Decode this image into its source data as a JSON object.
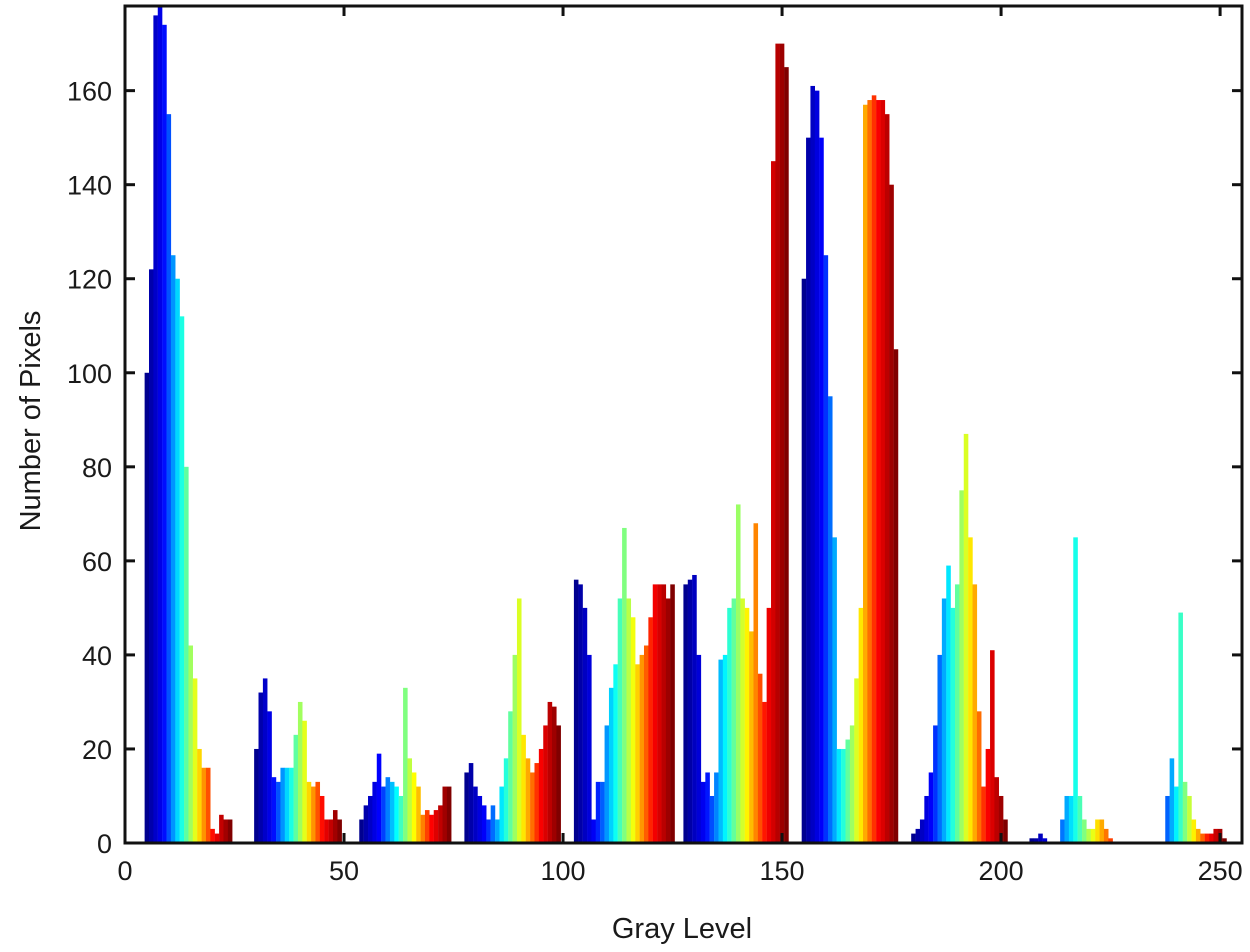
{
  "chart_data": {
    "type": "bar",
    "title": "",
    "xlabel": "Gray Level",
    "ylabel": "Number of Pixels",
    "xlim": [
      0,
      255
    ],
    "ylim": [
      0,
      178
    ],
    "xticks": [
      0,
      50,
      100,
      150,
      200,
      250
    ],
    "yticks": [
      0,
      20,
      40,
      60,
      80,
      100,
      120,
      140,
      160
    ],
    "grid": false,
    "legend": "none",
    "colormap": "jet",
    "colormap_stops": [
      "#00008f",
      "#0000ff",
      "#00ffff",
      "#ffff00",
      "#ff0000",
      "#800000"
    ],
    "bar_groups": [
      {
        "x": [
          5,
          6,
          7,
          8,
          9,
          10,
          11,
          12,
          13,
          14,
          15,
          16,
          17,
          18,
          19,
          20,
          21,
          22,
          23,
          24
        ],
        "values": [
          100,
          122,
          176,
          178,
          174,
          155,
          125,
          120,
          112,
          80,
          42,
          35,
          20,
          16,
          16,
          3,
          2,
          6,
          5,
          5
        ]
      },
      {
        "x": [
          30,
          31,
          32,
          33,
          34,
          35,
          36,
          37,
          38,
          39,
          40,
          41,
          42,
          43,
          44,
          45,
          46,
          47,
          48,
          49
        ],
        "values": [
          20,
          32,
          35,
          28,
          14,
          13,
          16,
          16,
          16,
          23,
          30,
          26,
          13,
          12,
          13,
          10,
          5,
          5,
          7,
          5
        ]
      },
      {
        "x": [
          54,
          55,
          56,
          57,
          58,
          59,
          60,
          61,
          62,
          63,
          64,
          65,
          66,
          67,
          68,
          69,
          70,
          71,
          72,
          73,
          74
        ],
        "values": [
          5,
          8,
          10,
          13,
          19,
          12,
          14,
          13,
          12,
          10,
          33,
          18,
          15,
          12,
          6,
          7,
          6,
          7,
          8,
          12,
          12
        ]
      },
      {
        "x": [
          78,
          79,
          80,
          81,
          82,
          83,
          84,
          85,
          86,
          87,
          88,
          89,
          90,
          91,
          92,
          93,
          94,
          95,
          96,
          97,
          98,
          99
        ],
        "values": [
          15,
          17,
          12,
          10,
          8,
          5,
          8,
          5,
          12,
          18,
          28,
          40,
          52,
          23,
          18,
          15,
          17,
          20,
          25,
          30,
          29,
          25
        ]
      },
      {
        "x": [
          103,
          104,
          105,
          106,
          107,
          108,
          109,
          110,
          111,
          112,
          113,
          114,
          115,
          116,
          117,
          118,
          119,
          120,
          121,
          122,
          123,
          124,
          125
        ],
        "values": [
          56,
          55,
          50,
          40,
          5,
          13,
          13,
          25,
          33,
          38,
          52,
          67,
          52,
          48,
          38,
          40,
          42,
          48,
          55,
          55,
          55,
          52,
          55
        ]
      },
      {
        "x": [
          128,
          129,
          130,
          131,
          132,
          133,
          134,
          135,
          136,
          137,
          138,
          139,
          140,
          141,
          142,
          143,
          144,
          145,
          146,
          147,
          148,
          149,
          150,
          151
        ],
        "values": [
          55,
          56,
          57,
          40,
          13,
          15,
          10,
          15,
          39,
          40,
          50,
          52,
          72,
          52,
          50,
          45,
          68,
          36,
          30,
          50,
          145,
          170,
          170,
          165
        ]
      },
      {
        "x": [
          155,
          156,
          157,
          158,
          159,
          160,
          161,
          162,
          163,
          164,
          165,
          166,
          167,
          168,
          169,
          170,
          171,
          172,
          173,
          174,
          175,
          176
        ],
        "values": [
          120,
          150,
          161,
          160,
          150,
          125,
          95,
          65,
          20,
          20,
          22,
          25,
          35,
          50,
          157,
          158,
          159,
          158,
          158,
          155,
          140,
          105
        ]
      },
      {
        "x": [
          180,
          181,
          182,
          183,
          184,
          185,
          186,
          187,
          188,
          189,
          190,
          191,
          192,
          193,
          194,
          195,
          196,
          197,
          198,
          199,
          200,
          201
        ],
        "values": [
          2,
          3,
          5,
          10,
          15,
          25,
          40,
          52,
          59,
          50,
          55,
          75,
          87,
          65,
          55,
          28,
          12,
          20,
          41,
          14,
          10,
          5
        ]
      },
      {
        "x": [
          207,
          208,
          209,
          210,
          211,
          212,
          213,
          214,
          215,
          216,
          217,
          218,
          219,
          220,
          221,
          222,
          223,
          224,
          225,
          226,
          227,
          228,
          229,
          230,
          231
        ],
        "values": [
          1,
          1,
          2,
          1,
          0,
          0,
          0,
          5,
          10,
          10,
          65,
          10,
          5,
          3,
          3,
          5,
          5,
          3,
          1,
          0,
          0,
          0,
          0,
          0,
          0
        ]
      },
      {
        "x": [
          233,
          234,
          235,
          236,
          237,
          238,
          239,
          240,
          241,
          242,
          243,
          244,
          245,
          246,
          247,
          248,
          249,
          250,
          251
        ],
        "values": [
          0,
          0,
          0,
          0,
          0,
          10,
          18,
          12,
          49,
          13,
          10,
          5,
          3,
          2,
          2,
          2,
          3,
          3,
          1
        ]
      }
    ]
  }
}
